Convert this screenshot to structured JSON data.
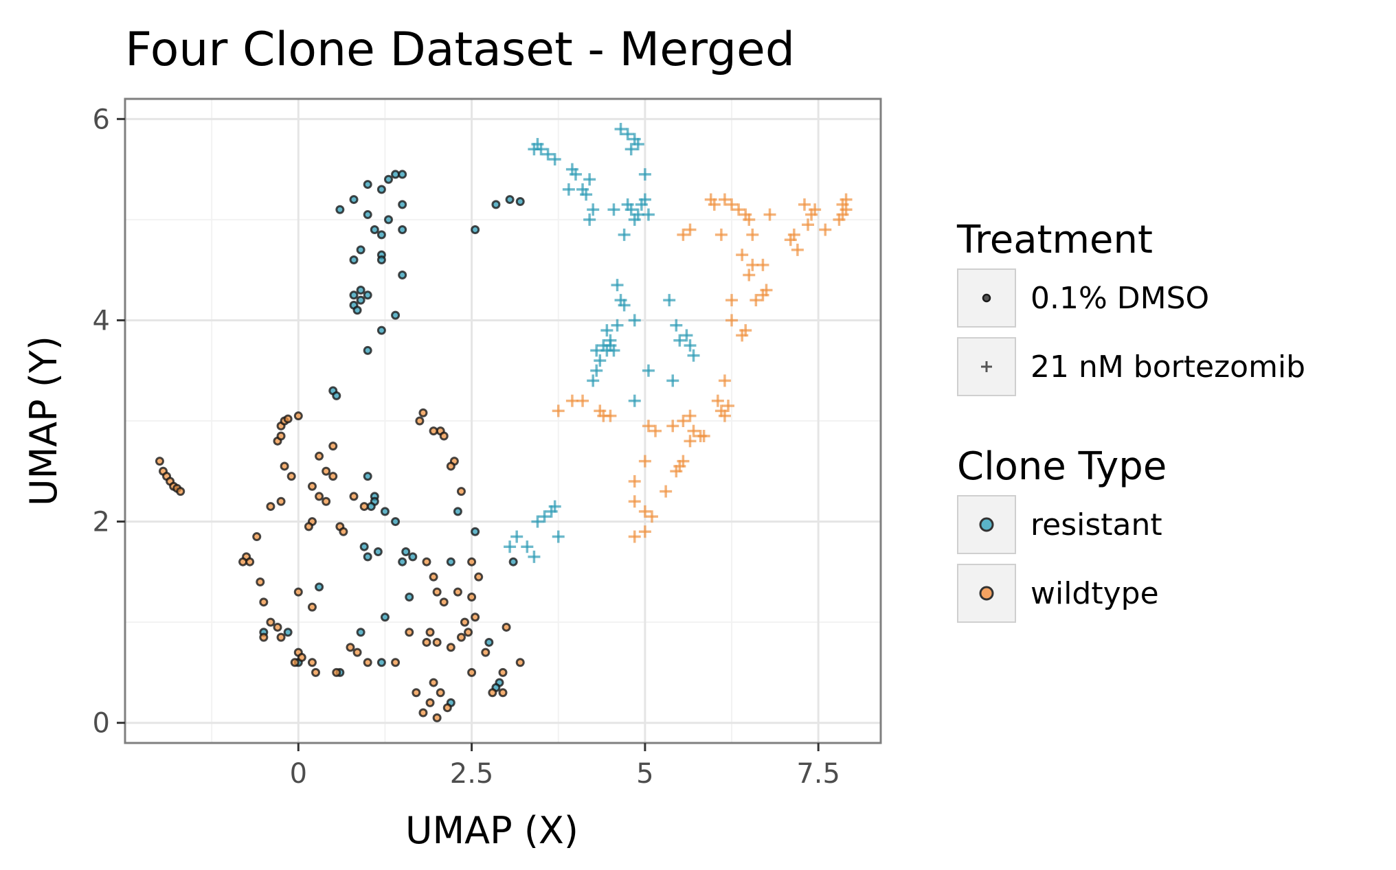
{
  "chart_data": {
    "type": "scatter",
    "title": "Four Clone Dataset - Merged",
    "xlabel": "UMAP (X)",
    "ylabel": "UMAP (Y)",
    "xlim": [
      -2.5,
      8.4
    ],
    "ylim": [
      -0.2,
      6.2
    ],
    "x_ticks": [
      {
        "value": 0,
        "label": "0"
      },
      {
        "value": 2.5,
        "label": "2.5"
      },
      {
        "value": 5,
        "label": "5"
      },
      {
        "value": 7.5,
        "label": "7.5"
      }
    ],
    "y_ticks": [
      {
        "value": 0,
        "label": "0"
      },
      {
        "value": 2,
        "label": "2"
      },
      {
        "value": 4,
        "label": "4"
      },
      {
        "value": 6,
        "label": "6"
      }
    ],
    "grid": true,
    "legend_position": "right",
    "legends": [
      {
        "title": "Treatment",
        "kind": "shape",
        "entries": [
          {
            "label": "0.1% DMSO",
            "shape": "circle"
          },
          {
            "label": "21 nM bortezomib",
            "shape": "plus"
          }
        ]
      },
      {
        "title": "Clone Type",
        "kind": "color",
        "entries": [
          {
            "label": "resistant",
            "shape": "circle",
            "color": "#5ab4c8"
          },
          {
            "label": "wildtype",
            "shape": "circle",
            "color": "#f4a261"
          }
        ]
      }
    ],
    "colors": {
      "resistant": "#2e9bb5",
      "wildtype": "#ef9342",
      "outline": "#1a1a1a"
    },
    "series": [
      {
        "treatment": "0.1% DMSO",
        "clone": "resistant",
        "marker": "circle",
        "points": [
          [
            0.6,
            5.1
          ],
          [
            0.8,
            5.2
          ],
          [
            0.8,
            4.6
          ],
          [
            1.0,
            5.35
          ],
          [
            1.0,
            5.05
          ],
          [
            1.1,
            4.9
          ],
          [
            1.2,
            5.3
          ],
          [
            1.2,
            4.65
          ],
          [
            1.3,
            5.4
          ],
          [
            1.4,
            5.45
          ],
          [
            1.5,
            5.45
          ],
          [
            1.5,
            5.15
          ],
          [
            1.3,
            5.0
          ],
          [
            1.2,
            4.85
          ],
          [
            0.9,
            4.7
          ],
          [
            1.2,
            4.6
          ],
          [
            1.5,
            4.9
          ],
          [
            0.8,
            4.25
          ],
          [
            0.9,
            4.3
          ],
          [
            0.9,
            4.2
          ],
          [
            1.0,
            4.25
          ],
          [
            0.8,
            4.15
          ],
          [
            0.85,
            4.1
          ],
          [
            1.2,
            3.9
          ],
          [
            1.0,
            3.7
          ],
          [
            1.4,
            4.05
          ],
          [
            1.5,
            4.45
          ],
          [
            0.5,
            3.3
          ],
          [
            0.55,
            3.25
          ],
          [
            2.55,
            4.9
          ],
          [
            2.85,
            5.15
          ],
          [
            3.05,
            5.2
          ],
          [
            3.2,
            5.18
          ],
          [
            1.0,
            2.45
          ],
          [
            1.1,
            2.25
          ],
          [
            1.1,
            2.2
          ],
          [
            1.05,
            2.15
          ],
          [
            1.25,
            2.1
          ],
          [
            1.4,
            2.0
          ],
          [
            1.55,
            1.7
          ],
          [
            0.95,
            1.75
          ],
          [
            1.0,
            1.65
          ],
          [
            1.15,
            1.7
          ],
          [
            1.5,
            1.6
          ],
          [
            1.65,
            1.65
          ],
          [
            2.2,
            1.6
          ],
          [
            1.6,
            1.25
          ],
          [
            1.25,
            1.05
          ],
          [
            2.3,
            2.1
          ],
          [
            2.55,
            1.9
          ],
          [
            3.1,
            1.6
          ],
          [
            0.3,
            1.35
          ],
          [
            0.9,
            0.9
          ],
          [
            0.6,
            0.5
          ],
          [
            -0.15,
            0.9
          ],
          [
            2.75,
            0.8
          ],
          [
            1.2,
            0.6
          ],
          [
            0.0,
            0.6
          ],
          [
            -0.5,
            0.9
          ],
          [
            2.9,
            0.4
          ],
          [
            2.85,
            0.35
          ],
          [
            2.2,
            0.2
          ]
        ]
      },
      {
        "treatment": "0.1% DMSO",
        "clone": "wildtype",
        "marker": "circle",
        "points": [
          [
            -2.0,
            2.6
          ],
          [
            -1.95,
            2.5
          ],
          [
            -1.9,
            2.45
          ],
          [
            -1.85,
            2.4
          ],
          [
            -1.8,
            2.35
          ],
          [
            -1.75,
            2.33
          ],
          [
            -1.7,
            2.3
          ],
          [
            -0.25,
            2.95
          ],
          [
            -0.2,
            3.0
          ],
          [
            -0.15,
            3.02
          ],
          [
            0.0,
            3.05
          ],
          [
            -0.3,
            2.8
          ],
          [
            -0.25,
            2.85
          ],
          [
            0.5,
            2.75
          ],
          [
            0.3,
            2.65
          ],
          [
            0.4,
            2.5
          ],
          [
            0.5,
            2.45
          ],
          [
            -0.2,
            2.55
          ],
          [
            -0.1,
            2.45
          ],
          [
            0.2,
            2.35
          ],
          [
            0.3,
            2.25
          ],
          [
            0.4,
            2.2
          ],
          [
            0.8,
            2.25
          ],
          [
            0.95,
            2.15
          ],
          [
            0.2,
            2.0
          ],
          [
            0.15,
            1.95
          ],
          [
            0.6,
            1.95
          ],
          [
            0.65,
            1.9
          ],
          [
            -0.25,
            2.2
          ],
          [
            -0.4,
            2.15
          ],
          [
            -0.6,
            1.85
          ],
          [
            -0.75,
            1.65
          ],
          [
            -0.8,
            1.6
          ],
          [
            -0.7,
            1.6
          ],
          [
            -0.55,
            1.4
          ],
          [
            0.0,
            1.3
          ],
          [
            0.2,
            1.15
          ],
          [
            -0.5,
            1.2
          ],
          [
            -0.4,
            1.0
          ],
          [
            -0.3,
            0.95
          ],
          [
            -0.25,
            0.85
          ],
          [
            -0.5,
            0.85
          ],
          [
            0.0,
            0.7
          ],
          [
            0.05,
            0.65
          ],
          [
            0.2,
            0.6
          ],
          [
            -0.05,
            0.6
          ],
          [
            0.25,
            0.5
          ],
          [
            0.55,
            0.5
          ],
          [
            0.75,
            0.75
          ],
          [
            0.85,
            0.7
          ],
          [
            1.0,
            0.6
          ],
          [
            1.4,
            0.6
          ],
          [
            1.75,
            3.0
          ],
          [
            1.8,
            3.08
          ],
          [
            2.05,
            2.9
          ],
          [
            2.1,
            2.85
          ],
          [
            1.95,
            2.9
          ],
          [
            2.25,
            2.6
          ],
          [
            2.2,
            2.55
          ],
          [
            2.35,
            2.3
          ],
          [
            1.85,
            1.6
          ],
          [
            1.95,
            1.45
          ],
          [
            2.0,
            1.3
          ],
          [
            2.1,
            1.2
          ],
          [
            2.3,
            1.3
          ],
          [
            2.5,
            1.6
          ],
          [
            2.6,
            1.45
          ],
          [
            2.5,
            1.25
          ],
          [
            2.55,
            1.05
          ],
          [
            2.45,
            0.9
          ],
          [
            2.4,
            1.0
          ],
          [
            2.35,
            0.85
          ],
          [
            2.2,
            0.75
          ],
          [
            2.0,
            0.8
          ],
          [
            1.9,
            0.9
          ],
          [
            1.85,
            0.8
          ],
          [
            1.6,
            0.9
          ],
          [
            2.5,
            0.5
          ],
          [
            2.7,
            0.7
          ],
          [
            2.95,
            0.5
          ],
          [
            3.2,
            0.6
          ],
          [
            3.0,
            0.95
          ],
          [
            2.8,
            0.3
          ],
          [
            2.95,
            0.3
          ],
          [
            1.95,
            0.4
          ],
          [
            1.7,
            0.3
          ],
          [
            1.9,
            0.2
          ],
          [
            2.05,
            0.3
          ],
          [
            2.15,
            0.15
          ],
          [
            1.8,
            0.1
          ],
          [
            2.0,
            0.05
          ]
        ]
      },
      {
        "treatment": "21 nM bortezomib",
        "clone": "resistant",
        "marker": "plus",
        "points": [
          [
            3.45,
            5.75
          ],
          [
            3.5,
            5.7
          ],
          [
            3.4,
            5.7
          ],
          [
            3.6,
            5.65
          ],
          [
            3.7,
            5.6
          ],
          [
            4.65,
            5.9
          ],
          [
            4.75,
            5.85
          ],
          [
            4.85,
            5.8
          ],
          [
            4.9,
            5.75
          ],
          [
            4.8,
            5.7
          ],
          [
            4.0,
            5.45
          ],
          [
            4.2,
            5.4
          ],
          [
            4.1,
            5.3
          ],
          [
            3.9,
            5.3
          ],
          [
            4.15,
            5.25
          ],
          [
            4.25,
            5.1
          ],
          [
            4.2,
            5.0
          ],
          [
            4.55,
            5.1
          ],
          [
            4.75,
            5.15
          ],
          [
            4.8,
            5.1
          ],
          [
            4.9,
            5.05
          ],
          [
            4.85,
            5.0
          ],
          [
            4.95,
            5.15
          ],
          [
            5.0,
            5.2
          ],
          [
            5.05,
            5.05
          ],
          [
            5.0,
            5.45
          ],
          [
            4.7,
            4.85
          ],
          [
            3.95,
            5.5
          ],
          [
            4.6,
            4.35
          ],
          [
            4.65,
            4.2
          ],
          [
            4.7,
            4.15
          ],
          [
            4.45,
            3.9
          ],
          [
            4.5,
            3.8
          ],
          [
            4.4,
            3.75
          ],
          [
            4.45,
            3.7
          ],
          [
            4.5,
            3.75
          ],
          [
            4.55,
            3.7
          ],
          [
            4.3,
            3.7
          ],
          [
            4.35,
            3.6
          ],
          [
            4.6,
            3.95
          ],
          [
            4.85,
            4.0
          ],
          [
            5.35,
            4.2
          ],
          [
            5.45,
            3.95
          ],
          [
            5.6,
            3.85
          ],
          [
            5.65,
            3.75
          ],
          [
            5.5,
            3.8
          ],
          [
            5.7,
            3.65
          ],
          [
            4.3,
            3.5
          ],
          [
            4.25,
            3.4
          ],
          [
            5.05,
            3.5
          ],
          [
            5.4,
            3.4
          ],
          [
            4.85,
            3.2
          ],
          [
            3.7,
            2.15
          ],
          [
            3.65,
            2.1
          ],
          [
            3.55,
            2.05
          ],
          [
            3.45,
            2.0
          ],
          [
            3.15,
            1.85
          ],
          [
            3.3,
            1.75
          ],
          [
            3.4,
            1.65
          ],
          [
            3.75,
            1.85
          ],
          [
            3.05,
            1.75
          ]
        ]
      },
      {
        "treatment": "21 nM bortezomib",
        "clone": "wildtype",
        "marker": "plus",
        "points": [
          [
            5.95,
            5.2
          ],
          [
            6.15,
            5.2
          ],
          [
            6.25,
            5.15
          ],
          [
            6.35,
            5.1
          ],
          [
            6.45,
            5.05
          ],
          [
            6.5,
            5.0
          ],
          [
            6.0,
            5.15
          ],
          [
            6.8,
            5.05
          ],
          [
            5.55,
            4.85
          ],
          [
            5.65,
            4.9
          ],
          [
            6.1,
            4.85
          ],
          [
            6.55,
            4.85
          ],
          [
            7.1,
            4.8
          ],
          [
            7.2,
            4.7
          ],
          [
            7.15,
            4.85
          ],
          [
            7.35,
            4.95
          ],
          [
            7.4,
            5.05
          ],
          [
            7.45,
            5.1
          ],
          [
            7.6,
            4.9
          ],
          [
            7.8,
            5.0
          ],
          [
            7.85,
            5.05
          ],
          [
            7.9,
            5.1
          ],
          [
            7.85,
            5.15
          ],
          [
            7.9,
            5.2
          ],
          [
            7.3,
            5.15
          ],
          [
            6.4,
            4.65
          ],
          [
            6.55,
            4.55
          ],
          [
            6.7,
            4.55
          ],
          [
            6.5,
            4.45
          ],
          [
            6.75,
            4.3
          ],
          [
            6.7,
            4.25
          ],
          [
            6.6,
            4.2
          ],
          [
            6.25,
            4.2
          ],
          [
            6.25,
            4.0
          ],
          [
            6.45,
            3.9
          ],
          [
            6.4,
            3.85
          ],
          [
            3.95,
            3.2
          ],
          [
            4.1,
            3.2
          ],
          [
            3.75,
            3.1
          ],
          [
            4.35,
            3.1
          ],
          [
            4.4,
            3.05
          ],
          [
            4.5,
            3.05
          ],
          [
            5.05,
            2.95
          ],
          [
            5.15,
            2.9
          ],
          [
            5.4,
            2.95
          ],
          [
            5.55,
            3.0
          ],
          [
            5.65,
            3.05
          ],
          [
            5.7,
            2.9
          ],
          [
            5.8,
            2.85
          ],
          [
            5.65,
            2.8
          ],
          [
            6.05,
            3.2
          ],
          [
            6.1,
            3.1
          ],
          [
            6.2,
            3.15
          ],
          [
            6.15,
            3.05
          ],
          [
            5.85,
            2.85
          ],
          [
            6.15,
            3.4
          ],
          [
            4.85,
            2.4
          ],
          [
            5.0,
            2.6
          ],
          [
            5.45,
            2.5
          ],
          [
            5.55,
            2.6
          ],
          [
            5.5,
            2.55
          ],
          [
            5.3,
            2.3
          ],
          [
            4.85,
            2.2
          ],
          [
            5.0,
            2.1
          ],
          [
            5.1,
            2.05
          ],
          [
            5.0,
            1.9
          ],
          [
            4.85,
            1.85
          ]
        ]
      }
    ]
  }
}
